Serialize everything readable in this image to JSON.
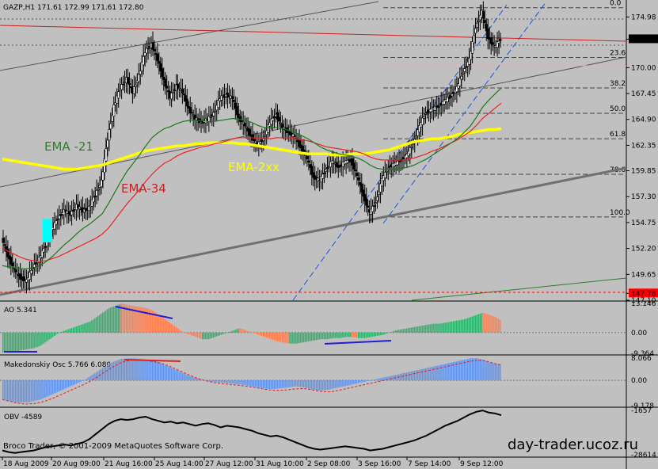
{
  "symbol_header": "GAZP,H1  171.61 172.99 171.61 172.80",
  "watermark": "day-trader.ucoz.ru",
  "copyright": "Broco Trader, © 2001-2009 MetaQuotes Software Corp.",
  "price_labels": [
    {
      "value": 174.98,
      "text": "174.98",
      "color": "#000000",
      "bg": "#c0c0c0"
    },
    {
      "value": 172.8,
      "text": "172.80",
      "color": "#ffffff",
      "bg": "#000000"
    },
    {
      "value": 170.0,
      "text": "170.00",
      "color": "#000000",
      "bg": "#c0c0c0"
    },
    {
      "value": 167.45,
      "text": "167.45",
      "color": "#000000",
      "bg": "#c0c0c0"
    },
    {
      "value": 164.9,
      "text": "164.90",
      "color": "#000000",
      "bg": "#c0c0c0"
    },
    {
      "value": 162.35,
      "text": "162.35",
      "color": "#000000",
      "bg": "#c0c0c0"
    },
    {
      "value": 159.85,
      "text": "159.85",
      "color": "#000000",
      "bg": "#c0c0c0"
    },
    {
      "value": 157.3,
      "text": "157.30",
      "color": "#000000",
      "bg": "#c0c0c0"
    },
    {
      "value": 154.75,
      "text": "154.75",
      "color": "#000000",
      "bg": "#c0c0c0"
    },
    {
      "value": 152.2,
      "text": "152.20",
      "color": "#000000",
      "bg": "#c0c0c0"
    },
    {
      "value": 149.65,
      "text": "149.65",
      "color": "#000000",
      "bg": "#c0c0c0"
    },
    {
      "value": 147.78,
      "text": "147.78",
      "color": "#000000",
      "bg": "#ff0000"
    },
    {
      "value": 147.1,
      "text": "147.10",
      "color": "#000000",
      "bg": "#c0c0c0"
    }
  ],
  "fib_levels": [
    {
      "label": "0.0",
      "value": 175.9
    },
    {
      "label": "23.6",
      "value": 171.0
    },
    {
      "label": "38.2",
      "value": 168.0
    },
    {
      "label": "50.0",
      "value": 165.5
    },
    {
      "label": "61.8",
      "value": 163.0
    },
    {
      "label": "78.6",
      "value": 159.5
    },
    {
      "label": "100.0",
      "value": 155.3
    }
  ],
  "annotations": {
    "ema21": {
      "text": "EMA -21",
      "color": "#2e7d2e"
    },
    "ema34": {
      "text": "EMA-34",
      "color": "#cc2020"
    },
    "ema2xx": {
      "text": "EMA-2xx",
      "color": "#ffff00"
    }
  },
  "x_axis_labels": [
    "18 Aug 2009",
    "20 Aug 09:00",
    "21 Aug 16:00",
    "25 Aug 14:00",
    "27 Aug 12:00",
    "31 Aug 10:00",
    "2 Sep 08:00",
    "3 Sep 16:00",
    "7 Sep 14:00",
    "9 Sep 12:00"
  ],
  "ao": {
    "label": "AO 5.341",
    "ticks": [
      "13.146",
      "0.00",
      "-9.364"
    ]
  },
  "mak": {
    "label": "Makedonskiy Osc 5.766 6.080",
    "ticks": [
      "8.066",
      "0.00",
      "-9.178"
    ]
  },
  "obv": {
    "label": "OBV -4589",
    "ticks": [
      "-1657",
      "-28614"
    ]
  },
  "chart_data": {
    "type": "candlestick",
    "title": "GAZP,H1",
    "ylim": [
      147.1,
      176.5
    ],
    "closes": [
      153.2,
      151.5,
      150.1,
      149.3,
      149.0,
      150.4,
      151.2,
      152.5,
      154.0,
      155.2,
      155.9,
      155.6,
      156.4,
      155.9,
      156.2,
      157.5,
      158.8,
      163.0,
      166.2,
      168.0,
      168.9,
      167.6,
      169.2,
      171.6,
      172.3,
      170.8,
      168.7,
      167.1,
      168.2,
      167.6,
      165.9,
      165.0,
      164.6,
      164.9,
      165.5,
      167.0,
      167.3,
      167.0,
      165.0,
      164.3,
      163.2,
      162.4,
      163.0,
      164.6,
      165.4,
      164.1,
      163.6,
      163.2,
      162.1,
      161.0,
      159.2,
      158.9,
      160.0,
      160.8,
      160.2,
      160.7,
      160.9,
      159.3,
      157.4,
      155.7,
      156.8,
      159.0,
      160.2,
      160.5,
      160.9,
      161.4,
      162.6,
      164.2,
      165.6,
      165.9,
      166.2,
      166.7,
      167.2,
      168.0,
      169.6,
      170.8,
      174.0,
      175.5,
      173.0,
      172.0,
      172.8
    ],
    "ema21": [
      150.5,
      150.4,
      150.3,
      150.2,
      150.2,
      150.3,
      150.5,
      150.9,
      151.4,
      152.0,
      152.6,
      153.1,
      153.7,
      154.2,
      154.6,
      155.1,
      155.6,
      156.6,
      157.7,
      158.8,
      159.8,
      160.6,
      161.4,
      162.3,
      163.1,
      163.6,
      164.0,
      164.2,
      164.5,
      164.7,
      164.8,
      164.8,
      164.8,
      164.7,
      164.7,
      164.8,
      164.9,
      165.0,
      164.9,
      164.8,
      164.6,
      164.3,
      164.1,
      164.1,
      164.1,
      164.0,
      163.8,
      163.6,
      163.3,
      163.0,
      162.6,
      162.2,
      161.9,
      161.7,
      161.5,
      161.4,
      161.3,
      161.1,
      160.8,
      160.4,
      160.1,
      160.0,
      160.0,
      160.0,
      160.1,
      160.2,
      160.4,
      160.7,
      161.0,
      161.4,
      161.8,
      162.2,
      162.6,
      163.0,
      163.6,
      164.2,
      165.1,
      166.1,
      166.8,
      167.4,
      168.0
    ],
    "ema34": [
      152.2,
      151.9,
      151.6,
      151.3,
      151.1,
      151.0,
      150.9,
      151.0,
      151.2,
      151.4,
      151.7,
      152.0,
      152.3,
      152.6,
      152.9,
      153.2,
      153.6,
      154.2,
      155.0,
      155.8,
      156.6,
      157.3,
      158.0,
      158.8,
      159.5,
      160.1,
      160.6,
      160.9,
      161.3,
      161.6,
      161.8,
      162.0,
      162.2,
      162.3,
      162.5,
      162.6,
      162.8,
      163.0,
      163.1,
      163.1,
      163.1,
      163.0,
      163.0,
      163.0,
      163.1,
      163.1,
      163.1,
      163.0,
      162.9,
      162.8,
      162.6,
      162.4,
      162.2,
      162.1,
      162.0,
      161.9,
      161.8,
      161.7,
      161.5,
      161.2,
      161.0,
      160.9,
      160.9,
      160.9,
      160.9,
      161.0,
      161.1,
      161.3,
      161.5,
      161.8,
      162.0,
      162.3,
      162.6,
      162.9,
      163.3,
      163.7,
      164.3,
      165.0,
      165.5,
      166.0,
      166.5
    ],
    "ema2xx": [
      161.0,
      160.9,
      160.8,
      160.7,
      160.6,
      160.5,
      160.4,
      160.3,
      160.2,
      160.1,
      160.0,
      160.0,
      160.0,
      160.1,
      160.2,
      160.3,
      160.4,
      160.6,
      160.8,
      161.0,
      161.2,
      161.4,
      161.6,
      161.8,
      161.9,
      162.0,
      162.1,
      162.2,
      162.3,
      162.3,
      162.4,
      162.5,
      162.5,
      162.6,
      162.6,
      162.6,
      162.6,
      162.6,
      162.5,
      162.5,
      162.4,
      162.3,
      162.2,
      162.1,
      162.0,
      161.9,
      161.8,
      161.7,
      161.6,
      161.5,
      161.5,
      161.5,
      161.5,
      161.4,
      161.4,
      161.4,
      161.5,
      161.5,
      161.5,
      161.6,
      161.7,
      161.8,
      161.9,
      162.1,
      162.3,
      162.5,
      162.7,
      162.8,
      162.9,
      163.0,
      163.0,
      163.1,
      163.2,
      163.4,
      163.5,
      163.6,
      163.7,
      163.8,
      163.9,
      163.9,
      164.0
    ],
    "ao": [
      -9,
      -9,
      -8.5,
      -8,
      -7.5,
      -7,
      -6,
      -4,
      -2,
      0,
      1,
      2,
      3,
      4,
      5,
      7,
      9,
      11,
      12,
      13,
      12.5,
      12,
      11.5,
      11,
      10,
      8,
      6,
      4,
      2,
      0,
      -1,
      -2,
      -3,
      -3,
      -2,
      -1,
      0,
      1,
      2,
      1,
      0,
      -1,
      -2,
      -3,
      -4,
      -4.5,
      -5,
      -5,
      -4.5,
      -4,
      -3.5,
      -3,
      -3,
      -2.5,
      -2.5,
      -2,
      -2,
      -2.5,
      -2.5,
      -2,
      -1.5,
      -1,
      0,
      1,
      1.5,
      2,
      2.5,
      3,
      3.5,
      4,
      4,
      4.5,
      5,
      5.5,
      6,
      7,
      8,
      9,
      8,
      7,
      5.3
    ],
    "mak": [
      -7,
      -7.5,
      -8,
      -8,
      -8,
      -7.5,
      -7,
      -6,
      -5,
      -4,
      -3,
      -2,
      -1,
      0,
      1.5,
      3,
      4.5,
      6,
      7,
      7.8,
      8,
      8,
      7.8,
      7.5,
      7.2,
      6.5,
      5.5,
      4.5,
      3.5,
      2.5,
      1.5,
      0.8,
      0.2,
      -0.3,
      -0.6,
      -0.8,
      -1,
      -1.2,
      -1.5,
      -1.8,
      -2.2,
      -2.6,
      -3,
      -3.2,
      -3,
      -2.8,
      -2.5,
      -2.2,
      -2.5,
      -3,
      -3.5,
      -3.8,
      -3.5,
      -3,
      -2.5,
      -2,
      -1.5,
      -1,
      -0.5,
      0,
      0.5,
      1,
      1.5,
      2,
      2.5,
      3,
      3.5,
      4,
      4.5,
      5,
      5.5,
      6,
      6.5,
      7,
      7.5,
      8,
      8,
      7.5,
      6.5,
      6,
      5.8
    ],
    "obv": [
      -26000,
      -27000,
      -27500,
      -27000,
      -26500,
      -26000,
      -25000,
      -24000,
      -23500,
      -23000,
      -22500,
      -23000,
      -22000,
      -21000,
      -19000,
      -16000,
      -13000,
      -10000,
      -8000,
      -7000,
      -7500,
      -7000,
      -6000,
      -5500,
      -7000,
      -8000,
      -9000,
      -8500,
      -9500,
      -9000,
      -10000,
      -11000,
      -10000,
      -9500,
      -10500,
      -12000,
      -11000,
      -11500,
      -12000,
      -13000,
      -14000,
      -15500,
      -16500,
      -17500,
      -17000,
      -18000,
      -19500,
      -21000,
      -22500,
      -24000,
      -25000,
      -25500,
      -25000,
      -24500,
      -24000,
      -23500,
      -24000,
      -24500,
      -25000,
      -26000,
      -25500,
      -25000,
      -24000,
      -23000,
      -22000,
      -21000,
      -20000,
      -18500,
      -17000,
      -15000,
      -13000,
      -11000,
      -9500,
      -8000,
      -6000,
      -4000,
      -2500,
      -1700,
      -3000,
      -3500,
      -4589
    ],
    "price_ylim": [
      147.1,
      176.5
    ],
    "ao_ylim": [
      -9.364,
      13.146
    ],
    "mak_ylim": [
      -9.178,
      8.066
    ],
    "obv_ylim": [
      -28614,
      -1657
    ]
  }
}
